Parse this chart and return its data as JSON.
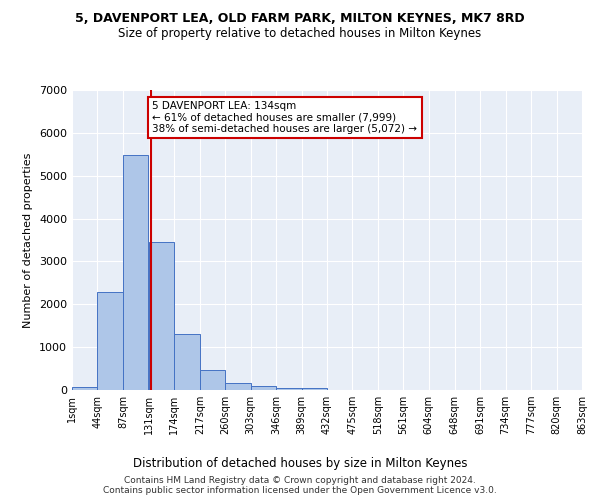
{
  "title1": "5, DAVENPORT LEA, OLD FARM PARK, MILTON KEYNES, MK7 8RD",
  "title2": "Size of property relative to detached houses in Milton Keynes",
  "xlabel": "Distribution of detached houses by size in Milton Keynes",
  "ylabel": "Number of detached properties",
  "footnote": "Contains HM Land Registry data © Crown copyright and database right 2024.\nContains public sector information licensed under the Open Government Licence v3.0.",
  "bin_edges": [
    1,
    44,
    87,
    131,
    174,
    217,
    260,
    303,
    346,
    389,
    432,
    475,
    518,
    561,
    604,
    648,
    691,
    734,
    777,
    820,
    863
  ],
  "bar_heights": [
    75,
    2280,
    5480,
    3450,
    1310,
    460,
    155,
    90,
    55,
    40,
    0,
    0,
    0,
    0,
    0,
    0,
    0,
    0,
    0,
    0
  ],
  "bar_color": "#aec6e8",
  "bar_edge_color": "#4472c4",
  "property_line_x": 134,
  "property_line_color": "#cc0000",
  "annotation_text": "5 DAVENPORT LEA: 134sqm\n← 61% of detached houses are smaller (7,999)\n38% of semi-detached houses are larger (5,072) →",
  "annotation_box_color": "#cc0000",
  "ylim": [
    0,
    7000
  ],
  "background_color": "#e8eef7",
  "grid_color": "#ffffff",
  "tick_labels": [
    "1sqm",
    "44sqm",
    "87sqm",
    "131sqm",
    "174sqm",
    "217sqm",
    "260sqm",
    "303sqm",
    "346sqm",
    "389sqm",
    "432sqm",
    "475sqm",
    "518sqm",
    "561sqm",
    "604sqm",
    "648sqm",
    "691sqm",
    "734sqm",
    "777sqm",
    "820sqm",
    "863sqm"
  ]
}
